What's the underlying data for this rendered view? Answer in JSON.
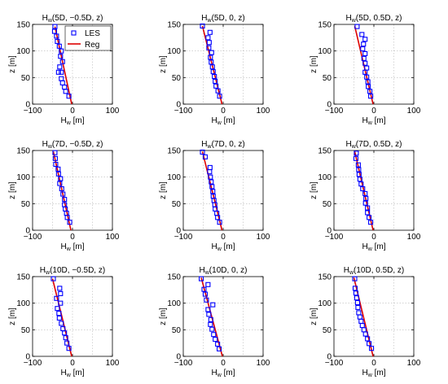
{
  "figure": {
    "xlabel_main": "H",
    "xlabel_sub": "w",
    "xlabel_unit": " [m]",
    "ylabel": "z [m]",
    "title_main": "H",
    "title_sub": "w",
    "legend": {
      "les": "LES",
      "reg": "Reg",
      "placement": "top-right of first panel"
    },
    "colors": {
      "les": "#0000ff",
      "reg": "#dd0000"
    },
    "grid": "dotted"
  },
  "chart_data": [
    {
      "type": "scatter",
      "title": "(5D, −0.5D, z)",
      "xlim": [
        -100,
        100
      ],
      "ylim": [
        0,
        150
      ],
      "xticks": [
        "−100",
        "0",
        "100"
      ],
      "yticks": [
        "0",
        "50",
        "100",
        "150"
      ],
      "series": [
        {
          "name": "LES",
          "x": [
            -9,
            -17,
            -20,
            -25,
            -28,
            -28,
            -35,
            -32,
            -25,
            -30,
            -28,
            -33,
            -38,
            -40,
            -45,
            -44
          ],
          "y": [
            15,
            24,
            32,
            40,
            48,
            60,
            60,
            70,
            80,
            90,
            100,
            109,
            118,
            128,
            137,
            146
          ]
        },
        {
          "name": "Reg",
          "x": [
            -2,
            -44
          ],
          "y": [
            0,
            146
          ]
        }
      ]
    },
    {
      "type": "scatter",
      "title": "(5D, 0, z)",
      "xlim": [
        -100,
        100
      ],
      "ylim": [
        0,
        150
      ],
      "xticks": [
        "−100",
        "0",
        "100"
      ],
      "yticks": [
        "0",
        "50",
        "100",
        "150"
      ],
      "series": [
        {
          "name": "LES",
          "x": [
            -9,
            -13,
            -18,
            -20,
            -22,
            -25,
            -27,
            -30,
            -32,
            -29,
            -36,
            -35,
            -38,
            -33,
            -52
          ],
          "y": [
            15,
            25,
            34,
            43,
            52,
            61,
            70,
            79,
            88,
            97,
            106,
            116,
            125,
            135,
            147
          ]
        },
        {
          "name": "Reg",
          "x": [
            -3,
            -52
          ],
          "y": [
            0,
            147
          ]
        }
      ]
    },
    {
      "type": "scatter",
      "title": "(5D, 0.5D, z)",
      "xlim": [
        -100,
        100
      ],
      "ylim": [
        0,
        150
      ],
      "xticks": [
        "−100",
        "0",
        "100"
      ],
      "yticks": [
        "0",
        "50",
        "100",
        "150"
      ],
      "series": [
        {
          "name": "LES",
          "x": [
            -8,
            -10,
            -14,
            -15,
            -18,
            -22,
            -18,
            -22,
            -25,
            -22,
            -28,
            -26,
            -22,
            -30,
            -42
          ],
          "y": [
            15,
            24,
            33,
            42,
            51,
            60,
            68,
            77,
            86,
            95,
            104,
            113,
            122,
            131,
            146
          ]
        },
        {
          "name": "Reg",
          "x": [
            -2,
            -48
          ],
          "y": [
            0,
            147
          ]
        }
      ]
    },
    {
      "type": "scatter",
      "title": "(7D, −0.5D, z)",
      "xlim": [
        -100,
        100
      ],
      "ylim": [
        0,
        150
      ],
      "xticks": [
        "−100",
        "0",
        "100"
      ],
      "yticks": [
        "0",
        "50",
        "100",
        "150"
      ],
      "series": [
        {
          "name": "LES",
          "x": [
            -7,
            -13,
            -15,
            -18,
            -20,
            -20,
            -24,
            -27,
            -32,
            -30,
            -35,
            -36,
            -42,
            -43,
            -44
          ],
          "y": [
            15,
            24,
            32,
            40,
            48,
            58,
            68,
            78,
            88,
            97,
            106,
            115,
            124,
            135,
            146
          ]
        },
        {
          "name": "Reg",
          "x": [
            -4,
            -48
          ],
          "y": [
            0,
            148
          ]
        }
      ]
    },
    {
      "type": "scatter",
      "title": "(7D, 0, z)",
      "xlim": [
        -100,
        100
      ],
      "ylim": [
        0,
        150
      ],
      "xticks": [
        "−100",
        "0",
        "100"
      ],
      "yticks": [
        "0",
        "50",
        "100",
        "150"
      ],
      "series": [
        {
          "name": "LES",
          "x": [
            -9,
            -14,
            -16,
            -20,
            -21,
            -23,
            -25,
            -26,
            -28,
            -30,
            -32,
            -34,
            -33,
            -45,
            -52
          ],
          "y": [
            15,
            24,
            32,
            40,
            48,
            56,
            64,
            73,
            82,
            91,
            100,
            110,
            118,
            138,
            147
          ]
        },
        {
          "name": "Reg",
          "x": [
            -3,
            -52
          ],
          "y": [
            0,
            148
          ]
        }
      ]
    },
    {
      "type": "scatter",
      "title": "(7D, 0.5D, z)",
      "xlim": [
        -100,
        100
      ],
      "ylim": [
        0,
        150
      ],
      "xticks": [
        "−100",
        "0",
        "100"
      ],
      "yticks": [
        "0",
        "50",
        "100",
        "150"
      ],
      "series": [
        {
          "name": "LES",
          "x": [
            -8,
            -12,
            -16,
            -16,
            -21,
            -20,
            -22,
            -28,
            -32,
            -35,
            -37,
            -38,
            -39,
            -45,
            -44
          ],
          "y": [
            15,
            24,
            33,
            42,
            51,
            60,
            69,
            78,
            87,
            96,
            105,
            114,
            123,
            135,
            145
          ]
        },
        {
          "name": "Reg",
          "x": [
            -2,
            -48
          ],
          "y": [
            0,
            148
          ]
        }
      ]
    },
    {
      "type": "scatter",
      "title": "(10D, −0.5D, z)",
      "xlim": [
        -100,
        100
      ],
      "ylim": [
        0,
        150
      ],
      "xticks": [
        "−100",
        "0",
        "100"
      ],
      "yticks": [
        "0",
        "50",
        "100",
        "150"
      ],
      "series": [
        {
          "name": "LES",
          "x": [
            -9,
            -14,
            -17,
            -20,
            -24,
            -28,
            -33,
            -34,
            -38,
            -30,
            -40,
            -30,
            -32,
            -48
          ],
          "y": [
            15,
            25,
            35,
            44,
            52,
            62,
            72,
            81,
            90,
            100,
            109,
            118,
            128,
            146
          ]
        },
        {
          "name": "Reg",
          "x": [
            -2,
            -50
          ],
          "y": [
            0,
            146
          ]
        }
      ]
    },
    {
      "type": "scatter",
      "title": "(10D, 0, z)",
      "xlim": [
        -100,
        100
      ],
      "ylim": [
        0,
        150
      ],
      "xticks": [
        "−100",
        "0",
        "100"
      ],
      "yticks": [
        "0",
        "50",
        "100",
        "150"
      ],
      "series": [
        {
          "name": "LES",
          "x": [
            -10,
            -14,
            -20,
            -24,
            -28,
            -32,
            -31,
            -36,
            -38,
            -26,
            -42,
            -45,
            -48,
            -38,
            -55
          ],
          "y": [
            14,
            23,
            32,
            41,
            51,
            60,
            69,
            79,
            88,
            97,
            106,
            117,
            126,
            135,
            146
          ]
        },
        {
          "name": "Reg",
          "x": [
            -2,
            -55
          ],
          "y": [
            0,
            148
          ]
        }
      ]
    },
    {
      "type": "scatter",
      "title": "(10D, 0.5D, z)",
      "xlim": [
        -100,
        100
      ],
      "ylim": [
        0,
        150
      ],
      "xticks": [
        "−100",
        "0",
        "100"
      ],
      "yticks": [
        "0",
        "50",
        "100",
        "150"
      ],
      "series": [
        {
          "name": "LES",
          "x": [
            -6,
            -12,
            -16,
            -21,
            -25,
            -29,
            -32,
            -35,
            -38,
            -40,
            -41,
            -43,
            -45,
            -47,
            -48
          ],
          "y": [
            15,
            24,
            33,
            42,
            50,
            58,
            66,
            74,
            82,
            92,
            101,
            110,
            119,
            128,
            146
          ]
        },
        {
          "name": "Reg",
          "x": [
            -2,
            -50
          ],
          "y": [
            0,
            148
          ]
        }
      ]
    }
  ]
}
